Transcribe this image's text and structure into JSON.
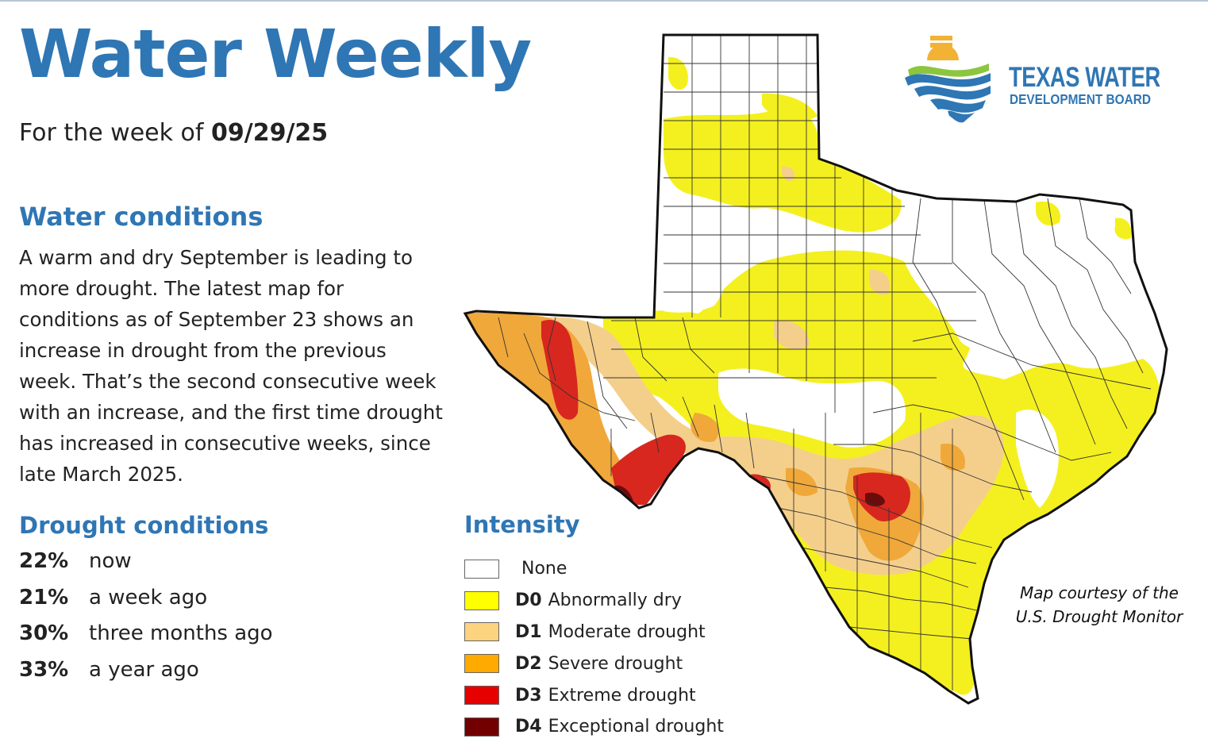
{
  "header": {
    "title": "Water Weekly",
    "week_prefix": "For the week of",
    "week_date": "09/29/25"
  },
  "logo": {
    "name": "TEXAS WATER",
    "subname": "DEVELOPMENT BOARD",
    "icon": "tx-water-wave-logo-icon"
  },
  "water_conditions": {
    "heading": "Water conditions",
    "body": "A warm and dry September is leading to more drought. The latest map for conditions as of September 23 shows an increase in drought from the previous week. That’s the second consecutive week with an increase, and the first time drought has increased in consecutive weeks, since late March 2025."
  },
  "drought_conditions": {
    "heading": "Drought conditions",
    "rows": [
      {
        "pct": "22%",
        "label": "now"
      },
      {
        "pct": "21%",
        "label": "a week ago"
      },
      {
        "pct": "30%",
        "label": "three months ago"
      },
      {
        "pct": "33%",
        "label": "a year ago"
      }
    ]
  },
  "legend": {
    "heading": "Intensity",
    "items": [
      {
        "code": "",
        "label": "None",
        "color": "#ffffff"
      },
      {
        "code": "D0",
        "label": "Abnormally dry",
        "color": "#ffff00"
      },
      {
        "code": "D1",
        "label": "Moderate drought",
        "color": "#fcd37f"
      },
      {
        "code": "D2",
        "label": "Severe drought",
        "color": "#ffaa00"
      },
      {
        "code": "D3",
        "label": "Extreme drought",
        "color": "#e60000"
      },
      {
        "code": "D4",
        "label": "Exceptional drought",
        "color": "#730000"
      }
    ]
  },
  "credit": {
    "line1": "Map courtesy of the",
    "line2": "U.S. Drought Monitor"
  },
  "map": {
    "subject": "Texas drought monitor map",
    "colors": {
      "none": "#ffffff",
      "d0": "#f4f01f",
      "d1": "#f4cf8c",
      "d2": "#f0a83a",
      "d3": "#d7271f",
      "d4": "#6a0c0c",
      "boundary": "#111111",
      "county_line": "#333333"
    }
  },
  "colors": {
    "accent": "#2f76b4",
    "text": "#222222"
  }
}
